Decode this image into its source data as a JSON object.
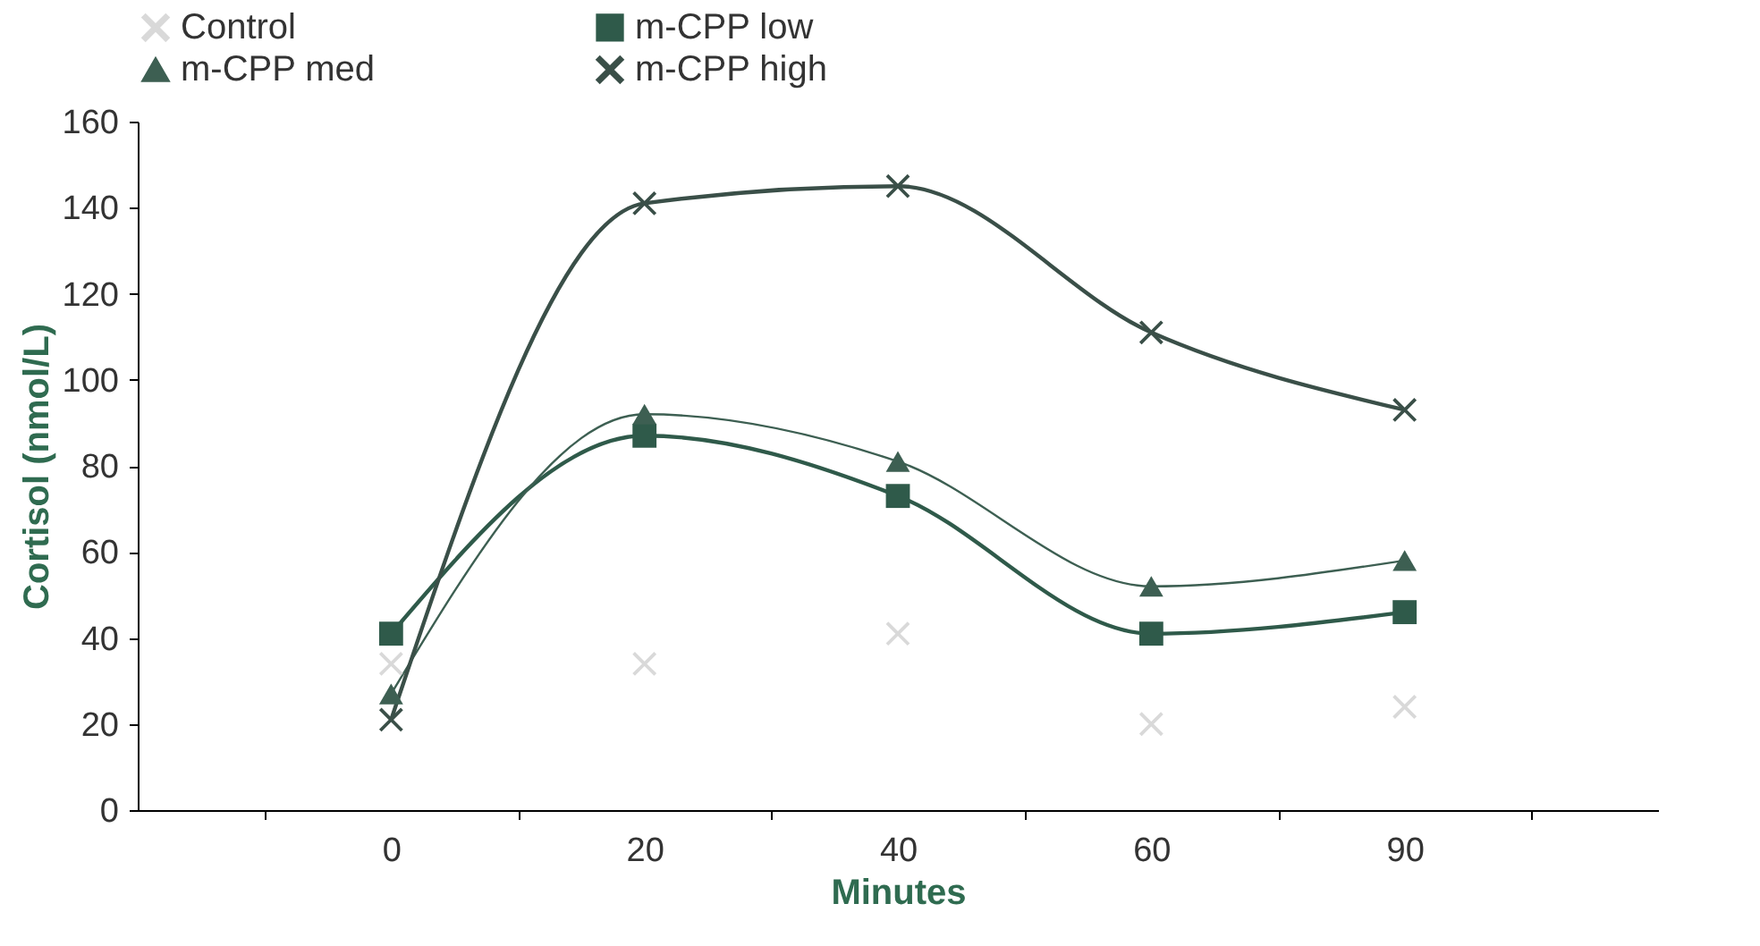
{
  "chart_data": {
    "type": "line",
    "xlabel": "Minutes",
    "ylabel": "Cortisol (nmol/L)",
    "categories": [
      "0",
      "20",
      "40",
      "60",
      "90"
    ],
    "ylim": [
      0,
      160
    ],
    "yticks": [
      0,
      20,
      40,
      60,
      80,
      100,
      120,
      140,
      160
    ],
    "grid": false,
    "legend": "top",
    "series": [
      {
        "name": "Control",
        "type": "scatter",
        "marker": "cross",
        "color": "#d9d9d9",
        "values": [
          34,
          34,
          41,
          20,
          24
        ]
      },
      {
        "name": "m-CPP low",
        "marker": "square",
        "color": "#2f5a4a",
        "values": [
          41,
          87,
          73,
          41,
          46
        ]
      },
      {
        "name": "m-CPP med",
        "marker": "triangle",
        "color": "#3d5f52",
        "values": [
          27,
          92,
          81,
          52,
          58
        ]
      },
      {
        "name": "m-CPP high",
        "marker": "cross",
        "color": "#3a4f48",
        "values": [
          21,
          141,
          145,
          111,
          93
        ]
      }
    ]
  }
}
